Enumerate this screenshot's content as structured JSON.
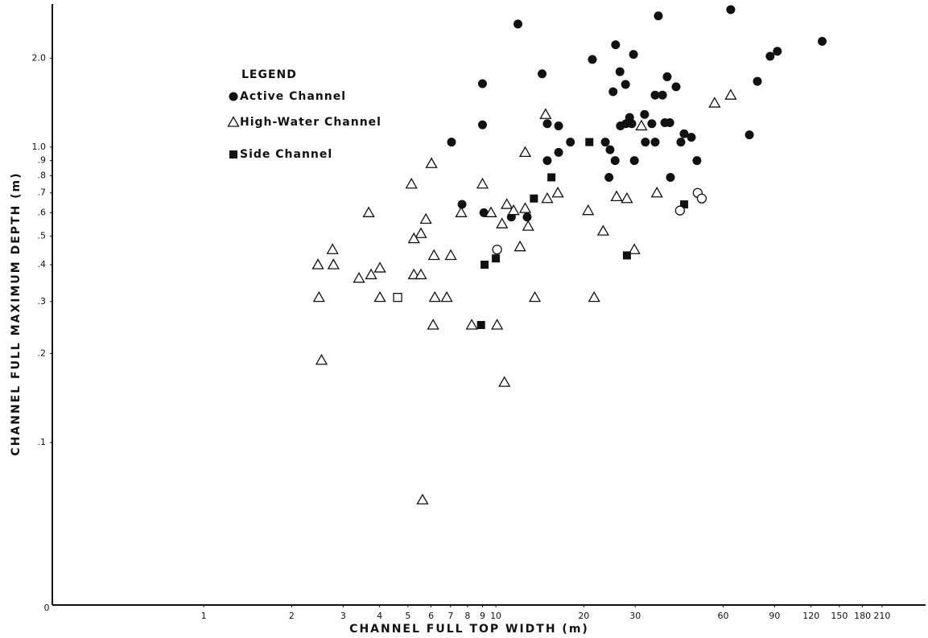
{
  "chart_data": {
    "type": "scatter",
    "x_label": "CHANNEL FULL TOP WIDTH (m)",
    "y_label": "CHANNEL FULL MAXIMUM DEPTH (m)",
    "origin_label": "0",
    "xscale": "log",
    "yscale": "log",
    "xlim": [
      0.303,
      296
    ],
    "ylim": [
      0.0282,
      3.05
    ],
    "xticks": [
      1,
      2,
      3,
      4,
      5,
      6,
      7,
      8,
      9,
      10,
      20,
      30,
      60,
      90,
      120,
      150,
      180,
      210
    ],
    "yticks": [
      {
        "value": 2,
        "label": "2.0"
      },
      {
        "value": 1,
        "label": "1.0"
      },
      {
        "value": 0.9,
        "label": ".9"
      },
      {
        "value": 0.8,
        "label": ".8"
      },
      {
        "value": 0.7,
        "label": ".7"
      },
      {
        "value": 0.6,
        "label": ".6"
      },
      {
        "value": 0.5,
        "label": ".5"
      },
      {
        "value": 0.4,
        "label": ".4"
      },
      {
        "value": 0.3,
        "label": ".3"
      },
      {
        "value": 0.2,
        "label": ".2"
      },
      {
        "value": 0.1,
        "label": ".1"
      }
    ],
    "legend": {
      "title": "LEGEND",
      "loc": "upper left"
    },
    "series": [
      {
        "name": "Active Channel",
        "color": "#111111",
        "marker": "circle",
        "x": [
          11.9,
          63.7,
          36.0,
          131,
          92,
          86.9,
          25.7,
          29.6,
          21.4,
          9.0,
          14.4,
          26.6,
          27.8,
          78.6,
          38.6,
          41.4,
          25.2,
          35.1,
          37.2,
          32.3,
          28.7,
          29.2,
          27.9,
          34.2,
          37.9,
          39.4,
          9.0,
          15.0,
          16.4,
          26.7,
          44.1,
          73.8,
          46.7,
          18.0,
          23.7,
          35.1,
          32.5,
          43.0,
          7.05,
          24.6,
          16.4,
          15.0,
          25.6,
          29.8,
          48.8,
          24.4,
          39.6,
          7.66,
          9.1,
          11.3,
          12.8
        ],
        "values": [
          2.61,
          2.92,
          2.78,
          2.28,
          2.11,
          2.03,
          2.22,
          2.06,
          1.98,
          1.64,
          1.77,
          1.8,
          1.63,
          1.67,
          1.73,
          1.6,
          1.54,
          1.5,
          1.5,
          1.29,
          1.26,
          1.2,
          1.2,
          1.2,
          1.21,
          1.21,
          1.19,
          1.2,
          1.18,
          1.18,
          1.11,
          1.1,
          1.08,
          1.04,
          1.04,
          1.04,
          1.04,
          1.04,
          1.04,
          0.98,
          0.96,
          0.9,
          0.9,
          0.9,
          0.9,
          0.79,
          0.79,
          0.64,
          0.6,
          0.58,
          0.58
        ]
      },
      {
        "name": "High-Water Channel",
        "color": "#111111",
        "marker": "triangle",
        "x": [
          63.7,
          56.1,
          14.8,
          31.5,
          12.6,
          6.02,
          5.14,
          9.0,
          16.3,
          35.6,
          25.9,
          28.1,
          15.0,
          3.67,
          7.61,
          9.62,
          10.9,
          11.5,
          12.6,
          12.9,
          10.5,
          20.7,
          5.76,
          5.54,
          5.24,
          23.3,
          2.76,
          12.1,
          29.8,
          4.01,
          2.46,
          2.78,
          6.14,
          7.01,
          3.4,
          3.74,
          5.24,
          5.54,
          4.01,
          2.48,
          6.18,
          6.79,
          13.6,
          21.7,
          6.1,
          8.27,
          10.1,
          2.53,
          10.7,
          5.61
        ],
        "values": [
          1.5,
          1.41,
          1.29,
          1.18,
          0.96,
          0.88,
          0.75,
          0.75,
          0.7,
          0.7,
          0.68,
          0.67,
          0.67,
          0.6,
          0.6,
          0.6,
          0.64,
          0.61,
          0.62,
          0.54,
          0.55,
          0.61,
          0.57,
          0.51,
          0.49,
          0.52,
          0.45,
          0.46,
          0.45,
          0.39,
          0.4,
          0.4,
          0.43,
          0.43,
          0.36,
          0.37,
          0.37,
          0.37,
          0.31,
          0.31,
          0.31,
          0.31,
          0.31,
          0.31,
          0.25,
          0.25,
          0.25,
          0.19,
          0.16,
          0.064
        ]
      },
      {
        "name": "Side Channel",
        "color": "#111111",
        "marker": "square",
        "x": [
          20.9,
          15.5,
          13.5,
          44.1,
          10.0,
          9.15,
          28.1,
          8.9
        ],
        "values": [
          1.04,
          0.79,
          0.67,
          0.64,
          0.42,
          0.4,
          0.43,
          0.25
        ]
      },
      {
        "color": "#111111",
        "marker": "open-circle",
        "x": [
          10.1,
          49.1,
          50.7,
          42.7
        ],
        "values": [
          0.45,
          0.7,
          0.67,
          0.61
        ]
      },
      {
        "color": "#111111",
        "marker": "open-square",
        "x": [
          4.61
        ],
        "values": [
          0.31
        ]
      }
    ]
  }
}
